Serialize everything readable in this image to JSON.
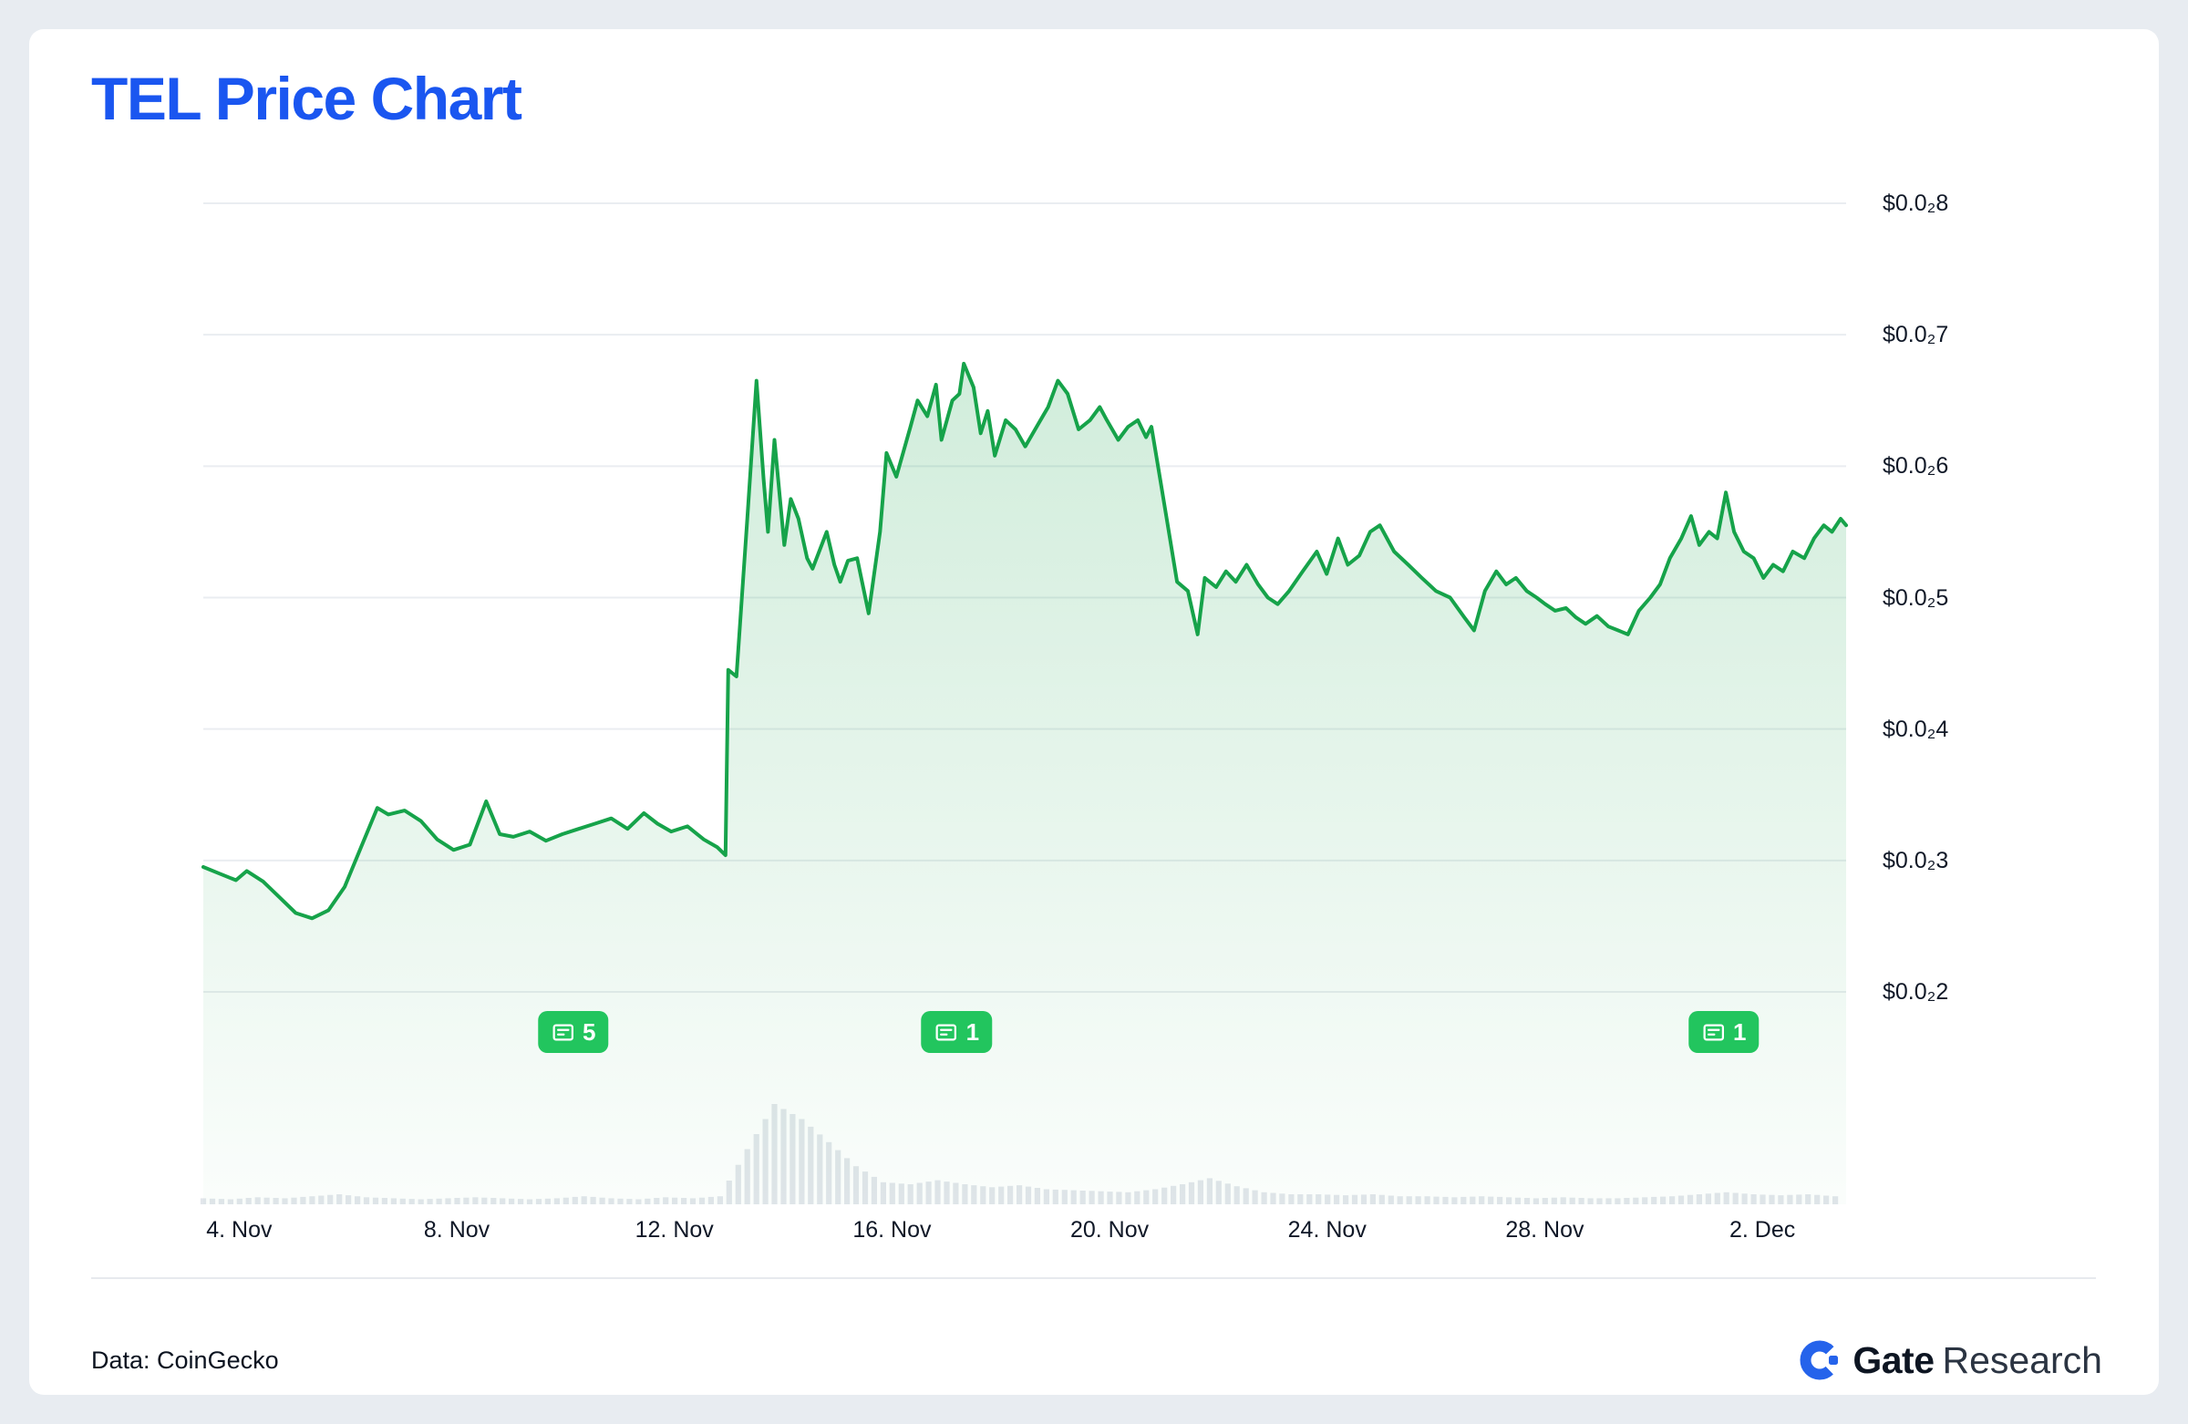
{
  "title": "TEL Price Chart",
  "footer": {
    "source": "Data: CoinGecko",
    "brand_bold": "Gate",
    "brand_regular": "Research"
  },
  "colors": {
    "title_blue": "#1a56f0",
    "line_green": "#16a34a",
    "fill_green_top": "rgba(22,163,74,0.20)",
    "fill_green_bottom": "rgba(22,163,74,0.02)",
    "badge_green": "#22c55e",
    "grid": "#eaedf1",
    "volume_gray": "#e2e6eb",
    "brand_blue": "#2563eb"
  },
  "chart_data": {
    "type": "area",
    "title": "TEL Price Chart",
    "x_axis": {
      "span_days": 30.2,
      "ticks": [
        {
          "t": 0.66,
          "label": "4. Nov"
        },
        {
          "t": 4.66,
          "label": "8. Nov"
        },
        {
          "t": 8.66,
          "label": "12. Nov"
        },
        {
          "t": 12.66,
          "label": "16. Nov"
        },
        {
          "t": 16.66,
          "label": "20. Nov"
        },
        {
          "t": 20.66,
          "label": "24. Nov"
        },
        {
          "t": 24.66,
          "label": "28. Nov"
        },
        {
          "t": 28.66,
          "label": "2. Dec"
        }
      ]
    },
    "y_axis": {
      "labels": [
        "$0.0₂8",
        "$0.0₂7",
        "$0.0₂6",
        "$0.0₂5",
        "$0.0₂4",
        "$0.0₂3",
        "$0.0₂2"
      ],
      "values_usd": [
        0.008,
        0.007,
        0.006,
        0.005,
        0.004,
        0.003,
        0.002
      ],
      "min_usd": 0.002,
      "max_usd": 0.008,
      "grid": true,
      "position": "right"
    },
    "price_unit": "USD x 0.001 (thousandths)",
    "price_points": [
      [
        0,
        2.95
      ],
      [
        0.3,
        2.9
      ],
      [
        0.6,
        2.85
      ],
      [
        0.8,
        2.92
      ],
      [
        1.1,
        2.84
      ],
      [
        1.4,
        2.72
      ],
      [
        1.7,
        2.6
      ],
      [
        2.0,
        2.56
      ],
      [
        2.3,
        2.62
      ],
      [
        2.6,
        2.8
      ],
      [
        2.9,
        3.1
      ],
      [
        3.2,
        3.4
      ],
      [
        3.4,
        3.35
      ],
      [
        3.7,
        3.38
      ],
      [
        4.0,
        3.3
      ],
      [
        4.3,
        3.16
      ],
      [
        4.6,
        3.08
      ],
      [
        4.9,
        3.12
      ],
      [
        5.2,
        3.45
      ],
      [
        5.45,
        3.2
      ],
      [
        5.7,
        3.18
      ],
      [
        6.0,
        3.22
      ],
      [
        6.3,
        3.15
      ],
      [
        6.6,
        3.2
      ],
      [
        6.9,
        3.24
      ],
      [
        7.2,
        3.28
      ],
      [
        7.5,
        3.32
      ],
      [
        7.8,
        3.24
      ],
      [
        8.1,
        3.36
      ],
      [
        8.35,
        3.28
      ],
      [
        8.6,
        3.22
      ],
      [
        8.9,
        3.26
      ],
      [
        9.2,
        3.16
      ],
      [
        9.45,
        3.1
      ],
      [
        9.6,
        3.04
      ],
      [
        9.65,
        4.45
      ],
      [
        9.8,
        4.4
      ],
      [
        10.0,
        5.6
      ],
      [
        10.17,
        6.65
      ],
      [
        10.3,
        5.9
      ],
      [
        10.38,
        5.5
      ],
      [
        10.5,
        6.2
      ],
      [
        10.68,
        5.4
      ],
      [
        10.8,
        5.75
      ],
      [
        10.94,
        5.6
      ],
      [
        11.1,
        5.3
      ],
      [
        11.2,
        5.22
      ],
      [
        11.46,
        5.5
      ],
      [
        11.6,
        5.25
      ],
      [
        11.71,
        5.12
      ],
      [
        11.85,
        5.28
      ],
      [
        12.02,
        5.3
      ],
      [
        12.23,
        4.88
      ],
      [
        12.44,
        5.5
      ],
      [
        12.56,
        6.1
      ],
      [
        12.74,
        5.92
      ],
      [
        13.0,
        6.3
      ],
      [
        13.13,
        6.5
      ],
      [
        13.31,
        6.38
      ],
      [
        13.47,
        6.62
      ],
      [
        13.57,
        6.2
      ],
      [
        13.77,
        6.5
      ],
      [
        13.9,
        6.55
      ],
      [
        13.98,
        6.78
      ],
      [
        14.16,
        6.6
      ],
      [
        14.29,
        6.25
      ],
      [
        14.42,
        6.42
      ],
      [
        14.55,
        6.08
      ],
      [
        14.75,
        6.35
      ],
      [
        14.93,
        6.28
      ],
      [
        15.11,
        6.15
      ],
      [
        15.32,
        6.3
      ],
      [
        15.53,
        6.45
      ],
      [
        15.71,
        6.65
      ],
      [
        15.89,
        6.55
      ],
      [
        16.09,
        6.28
      ],
      [
        16.3,
        6.35
      ],
      [
        16.48,
        6.45
      ],
      [
        16.61,
        6.35
      ],
      [
        16.82,
        6.2
      ],
      [
        17.0,
        6.3
      ],
      [
        17.18,
        6.35
      ],
      [
        17.33,
        6.22
      ],
      [
        17.43,
        6.3
      ],
      [
        17.59,
        5.9
      ],
      [
        17.77,
        5.45
      ],
      [
        17.9,
        5.12
      ],
      [
        18.1,
        5.05
      ],
      [
        18.28,
        4.72
      ],
      [
        18.41,
        5.15
      ],
      [
        18.62,
        5.08
      ],
      [
        18.8,
        5.2
      ],
      [
        18.98,
        5.12
      ],
      [
        19.18,
        5.25
      ],
      [
        19.39,
        5.1
      ],
      [
        19.57,
        5.0
      ],
      [
        19.75,
        4.95
      ],
      [
        19.96,
        5.05
      ],
      [
        20.21,
        5.2
      ],
      [
        20.47,
        5.35
      ],
      [
        20.65,
        5.18
      ],
      [
        20.86,
        5.45
      ],
      [
        21.04,
        5.25
      ],
      [
        21.25,
        5.32
      ],
      [
        21.45,
        5.5
      ],
      [
        21.63,
        5.55
      ],
      [
        21.89,
        5.35
      ],
      [
        22.15,
        5.25
      ],
      [
        22.4,
        5.15
      ],
      [
        22.66,
        5.05
      ],
      [
        22.92,
        5.0
      ],
      [
        23.18,
        4.85
      ],
      [
        23.36,
        4.75
      ],
      [
        23.56,
        5.05
      ],
      [
        23.77,
        5.2
      ],
      [
        23.95,
        5.1
      ],
      [
        24.13,
        5.15
      ],
      [
        24.33,
        5.05
      ],
      [
        24.51,
        5.0
      ],
      [
        24.67,
        4.95
      ],
      [
        24.85,
        4.9
      ],
      [
        25.05,
        4.92
      ],
      [
        25.23,
        4.85
      ],
      [
        25.41,
        4.8
      ],
      [
        25.62,
        4.86
      ],
      [
        25.83,
        4.78
      ],
      [
        26.01,
        4.75
      ],
      [
        26.19,
        4.72
      ],
      [
        26.39,
        4.9
      ],
      [
        26.6,
        5.0
      ],
      [
        26.78,
        5.1
      ],
      [
        26.96,
        5.3
      ],
      [
        27.17,
        5.45
      ],
      [
        27.35,
        5.62
      ],
      [
        27.5,
        5.4
      ],
      [
        27.68,
        5.5
      ],
      [
        27.83,
        5.45
      ],
      [
        27.99,
        5.8
      ],
      [
        28.14,
        5.5
      ],
      [
        28.32,
        5.35
      ],
      [
        28.5,
        5.3
      ],
      [
        28.68,
        5.15
      ],
      [
        28.86,
        5.25
      ],
      [
        29.04,
        5.2
      ],
      [
        29.22,
        5.35
      ],
      [
        29.43,
        5.3
      ],
      [
        29.61,
        5.45
      ],
      [
        29.79,
        5.55
      ],
      [
        29.94,
        5.5
      ],
      [
        30.1,
        5.6
      ],
      [
        30.2,
        5.55
      ]
    ],
    "volume_rel": {
      "t_step_days": 0.5,
      "values": [
        0.06,
        0.05,
        0.07,
        0.06,
        0.08,
        0.1,
        0.07,
        0.06,
        0.05,
        0.06,
        0.07,
        0.06,
        0.05,
        0.06,
        0.08,
        0.06,
        0.05,
        0.07,
        0.06,
        0.08,
        0.55,
        1.0,
        0.85,
        0.62,
        0.38,
        0.22,
        0.2,
        0.24,
        0.2,
        0.17,
        0.19,
        0.15,
        0.14,
        0.13,
        0.12,
        0.15,
        0.2,
        0.26,
        0.18,
        0.12,
        0.1,
        0.1,
        0.09,
        0.1,
        0.08,
        0.08,
        0.07,
        0.08,
        0.07,
        0.06,
        0.07,
        0.06,
        0.06,
        0.07,
        0.08,
        0.1,
        0.12,
        0.1,
        0.09,
        0.1,
        0.08
      ]
    },
    "news_badges": [
      {
        "t": 6.8,
        "count": "5"
      },
      {
        "t": 13.85,
        "count": "1"
      },
      {
        "t": 27.95,
        "count": "1"
      }
    ],
    "legend": false
  }
}
